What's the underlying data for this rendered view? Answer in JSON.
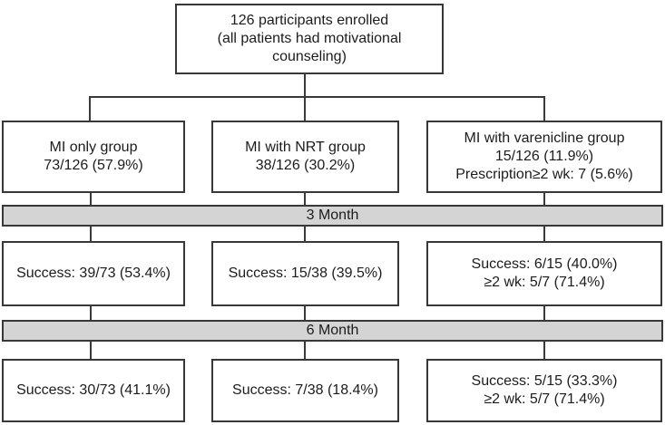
{
  "figure": {
    "background": "#ffffff",
    "box_border_color": "#383838",
    "connector_color": "#3a3a3a",
    "stage_bar_fill": "#d4d4d4",
    "text_color": "#1c1c1c"
  },
  "flowchart": {
    "root": "126 participants enrolled\n(all patients had motivational\ncounseling)",
    "groups": [
      "MI only group\n73/126 (57.9%)",
      "MI with NRT group\n38/126 (30.2%)",
      "MI with varenicline group\n15/126 (11.9%)\nPrescription≥2 wk: 7 (5.6%)"
    ],
    "stage1": {
      "label": "3 Month",
      "boxes": [
        "Success: 39/73 (53.4%)",
        "Success: 15/38 (39.5%)",
        "Success: 6/15 (40.0%)\n≥2 wk: 5/7 (71.4%)"
      ]
    },
    "stage2": {
      "label": "6 Month",
      "boxes": [
        "Success: 30/73 (41.1%)",
        "Success: 7/38 (18.4%)",
        "Success: 5/15 (33.3%)\n≥2 wk: 5/7 (71.4%)"
      ]
    }
  }
}
